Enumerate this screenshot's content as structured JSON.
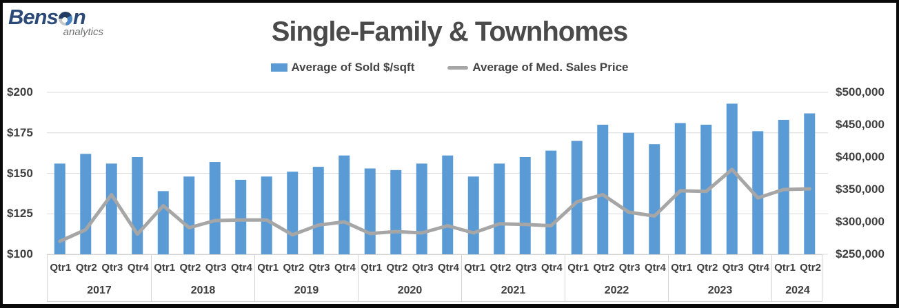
{
  "logo": {
    "brand_prefix": "Bens",
    "brand_suffix": "n",
    "tagline": "analytics"
  },
  "title": "Single-Family & Townhomes",
  "legend": {
    "bar_label": "Average of Sold $/sqft",
    "line_label": "Average of Med. Sales Price"
  },
  "chart_data": {
    "type": "combo-bar-line",
    "title": "Single-Family & Townhomes",
    "grid": "horizontal",
    "legend_position": "top-center",
    "year_groups": [
      {
        "year": "2017",
        "quarters": [
          "Qtr1",
          "Qtr2",
          "Qtr3",
          "Qtr4"
        ]
      },
      {
        "year": "2018",
        "quarters": [
          "Qtr1",
          "Qtr2",
          "Qtr3",
          "Qtr4"
        ]
      },
      {
        "year": "2019",
        "quarters": [
          "Qtr1",
          "Qtr2",
          "Qtr3",
          "Qtr4"
        ]
      },
      {
        "year": "2020",
        "quarters": [
          "Qtr1",
          "Qtr2",
          "Qtr3",
          "Qtr4"
        ]
      },
      {
        "year": "2021",
        "quarters": [
          "Qtr1",
          "Qtr2",
          "Qtr3",
          "Qtr4"
        ]
      },
      {
        "year": "2022",
        "quarters": [
          "Qtr1",
          "Qtr2",
          "Qtr3",
          "Qtr4"
        ]
      },
      {
        "year": "2023",
        "quarters": [
          "Qtr1",
          "Qtr2",
          "Qtr3",
          "Qtr4"
        ]
      },
      {
        "year": "2024",
        "quarters": [
          "Qtr1",
          "Qtr2"
        ]
      }
    ],
    "series": [
      {
        "name": "Average of Sold $/sqft",
        "type": "bar",
        "axis": "left",
        "color": "#5B9BD5",
        "values": [
          156,
          162,
          156,
          160,
          139,
          148,
          157,
          146,
          148,
          151,
          154,
          161,
          153,
          152,
          156,
          161,
          148,
          156,
          160,
          164,
          170,
          180,
          175,
          168,
          181,
          180,
          193,
          176,
          183,
          187
        ]
      },
      {
        "name": "Average of Med. Sales Price",
        "type": "line",
        "axis": "right",
        "color": "#A6A6A6",
        "values": [
          270000,
          288000,
          342000,
          281000,
          325000,
          291000,
          302000,
          303000,
          303000,
          280000,
          295000,
          300000,
          282000,
          285000,
          283000,
          294000,
          283000,
          297000,
          296000,
          294000,
          331000,
          342000,
          315000,
          309000,
          348000,
          347000,
          381000,
          337000,
          350000,
          351000
        ]
      }
    ],
    "left_axis": {
      "min": 100,
      "max": 200,
      "step": 25,
      "tick_labels": [
        "$100",
        "$125",
        "$150",
        "$175",
        "$200"
      ]
    },
    "right_axis": {
      "min": 250000,
      "max": 500000,
      "step": 50000,
      "tick_labels": [
        "$250,000",
        "$300,000",
        "$350,000",
        "$400,000",
        "$450,000",
        "$500,000"
      ]
    }
  }
}
